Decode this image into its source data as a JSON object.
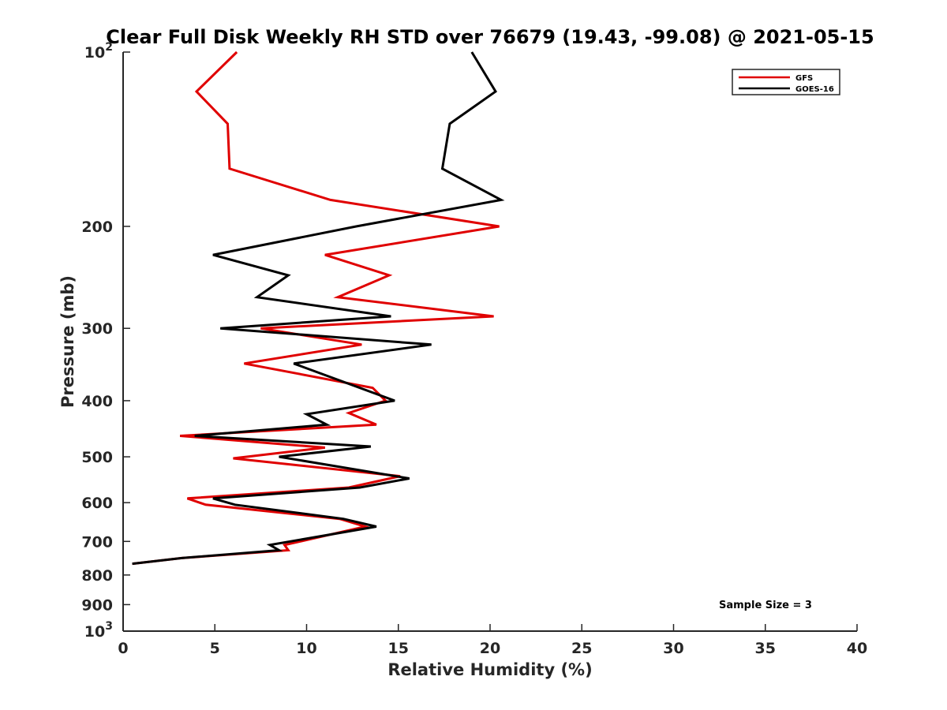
{
  "chart_data": {
    "type": "line",
    "title": "Clear Full Disk Weekly RH STD over 76679 (19.43, -99.08) @ 2021-05-15",
    "xlabel": "Relative Humidity (%)",
    "ylabel": "Pressure (mb)",
    "xlim": [
      0,
      40
    ],
    "ylim": [
      100,
      1000
    ],
    "y_scale": "log",
    "y_reversed": true,
    "x_ticks": [
      0,
      5,
      10,
      15,
      20,
      25,
      30,
      35,
      40
    ],
    "y_ticks": [
      {
        "value": 100,
        "label": "10",
        "sup": "2"
      },
      {
        "value": 200,
        "label": "200",
        "sup": ""
      },
      {
        "value": 300,
        "label": "300",
        "sup": ""
      },
      {
        "value": 400,
        "label": "400",
        "sup": ""
      },
      {
        "value": 500,
        "label": "500",
        "sup": ""
      },
      {
        "value": 600,
        "label": "600",
        "sup": ""
      },
      {
        "value": 700,
        "label": "700",
        "sup": ""
      },
      {
        "value": 800,
        "label": "800",
        "sup": ""
      },
      {
        "value": 900,
        "label": "900",
        "sup": ""
      },
      {
        "value": 1000,
        "label": "10",
        "sup": "3"
      }
    ],
    "legend_position": "top-right",
    "grid": false,
    "annotation": "Sample Size = 3",
    "series": [
      {
        "name": "GFS",
        "color": "#e00000",
        "points": [
          [
            6.2,
            100
          ],
          [
            4.0,
            117
          ],
          [
            5.7,
            133
          ],
          [
            5.8,
            159
          ],
          [
            11.3,
            180
          ],
          [
            20.5,
            200
          ],
          [
            11.0,
            224
          ],
          [
            14.5,
            243
          ],
          [
            11.7,
            265
          ],
          [
            20.2,
            286
          ],
          [
            7.5,
            300
          ],
          [
            13.0,
            320
          ],
          [
            6.6,
            345
          ],
          [
            13.6,
            380
          ],
          [
            14.3,
            400
          ],
          [
            12.3,
            420
          ],
          [
            13.8,
            440
          ],
          [
            3.1,
            460
          ],
          [
            11.0,
            482
          ],
          [
            6.0,
            503
          ],
          [
            15.1,
            540
          ],
          [
            12.3,
            565
          ],
          [
            3.5,
            590
          ],
          [
            4.5,
            605
          ],
          [
            11.8,
            640
          ],
          [
            13.2,
            660
          ],
          [
            8.8,
            710
          ],
          [
            9.0,
            725
          ],
          [
            3.2,
            748
          ],
          [
            0.5,
            765
          ]
        ]
      },
      {
        "name": "GOES-16",
        "color": "#000000",
        "points": [
          [
            19.0,
            100
          ],
          [
            20.3,
            117
          ],
          [
            17.8,
            133
          ],
          [
            17.4,
            159
          ],
          [
            20.6,
            180
          ],
          [
            12.7,
            200
          ],
          [
            4.9,
            224
          ],
          [
            9.0,
            243
          ],
          [
            7.3,
            265
          ],
          [
            14.6,
            286
          ],
          [
            5.3,
            300
          ],
          [
            16.8,
            320
          ],
          [
            9.3,
            345
          ],
          [
            14.8,
            400
          ],
          [
            10.0,
            422
          ],
          [
            11.1,
            440
          ],
          [
            3.9,
            460
          ],
          [
            13.5,
            480
          ],
          [
            8.5,
            500
          ],
          [
            15.6,
            545
          ],
          [
            12.9,
            565
          ],
          [
            4.9,
            590
          ],
          [
            6.1,
            605
          ],
          [
            12.0,
            640
          ],
          [
            13.8,
            660
          ],
          [
            8.0,
            710
          ],
          [
            8.5,
            725
          ],
          [
            3.2,
            748
          ],
          [
            0.5,
            765
          ]
        ]
      }
    ]
  }
}
